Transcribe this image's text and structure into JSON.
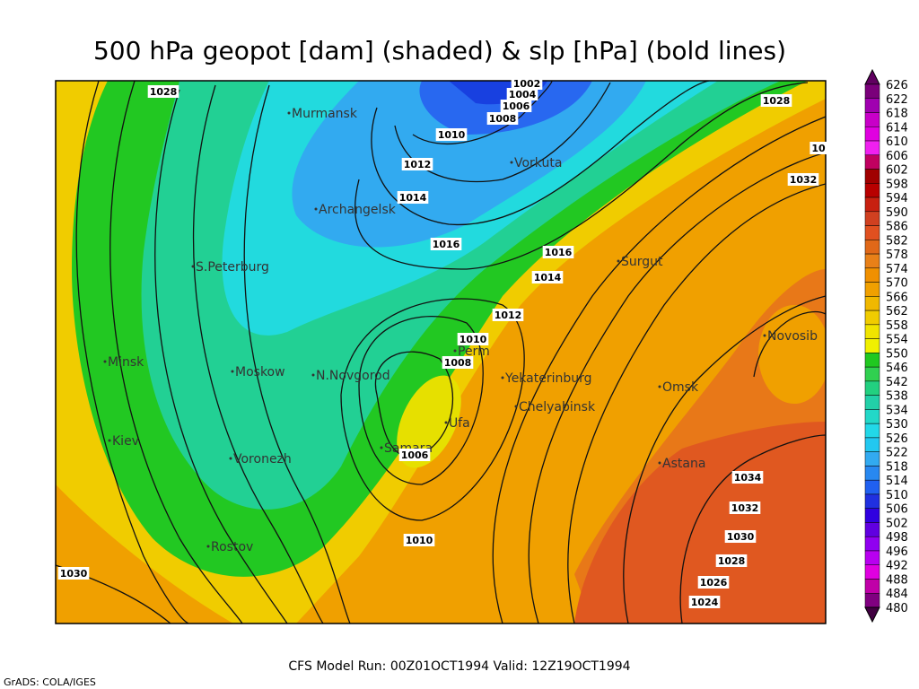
{
  "title": "500 hPa geopot [dam] (shaded) & slp [hPa] (bold lines)",
  "footer": "CFS Model Run: 00Z01OCT1994 Valid: 12Z19OCT1994",
  "credit": "GrADS: COLA/IGES",
  "cities": [
    "Murmansk",
    "Vorkuta",
    "Archangelsk",
    "Surgut",
    "S.Peterburg",
    "Novosib",
    "Minsk",
    "Moskow",
    "N.Novgorod",
    "Perm",
    "Yekaterinburg",
    "Omsk",
    "Chelyabinsk",
    "Ufa",
    "Kiev",
    "Samara",
    "Voronezh",
    "Astana",
    "Rostov"
  ],
  "isobar_labels": [
    "1028",
    "1002",
    "1004",
    "1006",
    "1008",
    "1010",
    "1012",
    "1014",
    "1016",
    "1016",
    "1014",
    "1012",
    "1010",
    "1008",
    "1006",
    "1010",
    "1028",
    "10",
    "1032",
    "1034",
    "1032",
    "1030",
    "1028",
    "1026",
    "1024",
    "1030"
  ],
  "colorbar_labels": [
    "626",
    "622",
    "618",
    "614",
    "610",
    "606",
    "602",
    "598",
    "594",
    "590",
    "586",
    "582",
    "578",
    "574",
    "570",
    "566",
    "562",
    "558",
    "554",
    "550",
    "546",
    "542",
    "538",
    "534",
    "530",
    "526",
    "522",
    "518",
    "514",
    "510",
    "506",
    "502",
    "498",
    "496",
    "492",
    "488",
    "484",
    "480"
  ]
}
